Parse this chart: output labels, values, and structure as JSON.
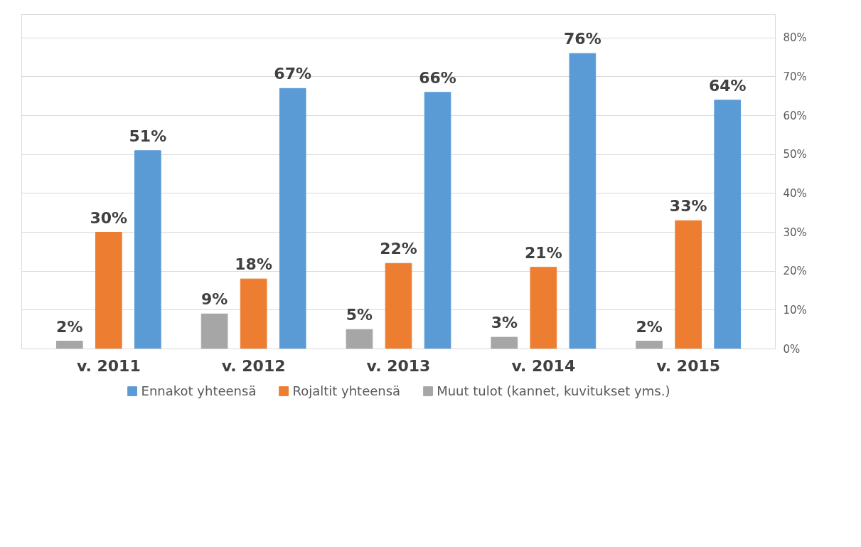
{
  "chart_data": {
    "type": "bar",
    "categories": [
      "v. 2011",
      "v. 2012",
      "v. 2013",
      "v. 2014",
      "v. 2015"
    ],
    "series": [
      {
        "name": "Muut tulot (kannet, kuvitukset yms.)",
        "color": "#a6a6a6",
        "values": [
          2,
          9,
          5,
          3,
          2
        ],
        "value_labels": [
          "2%",
          "9%",
          "5%",
          "3%",
          "2%"
        ]
      },
      {
        "name": "Rojaltit yhteensä",
        "color": "#ed7d31",
        "values": [
          30,
          18,
          22,
          21,
          33
        ],
        "value_labels": [
          "30%",
          "18%",
          "22%",
          "21%",
          "33%"
        ]
      },
      {
        "name": "Ennakot yhteensä",
        "color": "#5b9bd5",
        "values": [
          51,
          67,
          66,
          76,
          64
        ],
        "value_labels": [
          "51%",
          "67%",
          "66%",
          "76%",
          "64%"
        ]
      }
    ],
    "ylim": [
      0,
      86
    ],
    "yticks": [
      {
        "value": 0,
        "label": "0%"
      },
      {
        "value": 10,
        "label": "10%"
      },
      {
        "value": 20,
        "label": "20%"
      },
      {
        "value": 30,
        "label": "30%"
      },
      {
        "value": 40,
        "label": "40%"
      },
      {
        "value": 50,
        "label": "50%"
      },
      {
        "value": 60,
        "label": "60%"
      },
      {
        "value": 70,
        "label": "70%"
      },
      {
        "value": 80,
        "label": "80%"
      }
    ],
    "grid": "y",
    "legend": "bottom"
  }
}
